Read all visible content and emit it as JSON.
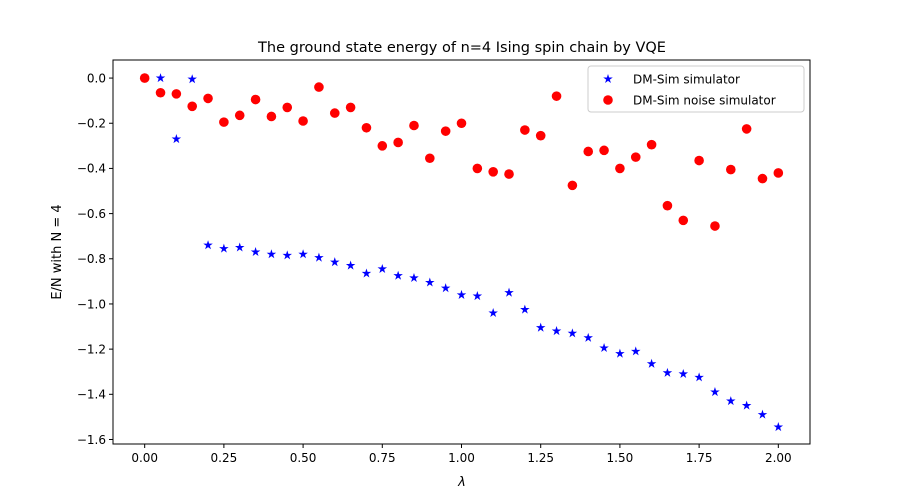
{
  "chart_data": {
    "type": "scatter",
    "title": "The ground state energy of n=4 Ising spin chain by VQE",
    "xlabel": "λ",
    "ylabel": "E/N with N = 4",
    "xlim": [
      -0.1,
      2.1
    ],
    "ylim": [
      -1.62,
      0.08
    ],
    "xticks": [
      0.0,
      0.25,
      0.5,
      0.75,
      1.0,
      1.25,
      1.5,
      1.75,
      2.0
    ],
    "xtick_labels": [
      "0.00",
      "0.25",
      "0.50",
      "0.75",
      "1.00",
      "1.25",
      "1.50",
      "1.75",
      "2.00"
    ],
    "yticks": [
      0.0,
      -0.2,
      -0.4,
      -0.6,
      -0.8,
      -1.0,
      -1.2,
      -1.4,
      -1.6
    ],
    "ytick_labels": [
      "0.0",
      "−0.2",
      "−0.4",
      "−0.6",
      "−0.8",
      "−1.0",
      "−1.2",
      "−1.4",
      "−1.6"
    ],
    "grid": false,
    "legend_position": "top-right",
    "x": [
      0.0,
      0.05,
      0.1,
      0.15,
      0.2,
      0.25,
      0.3,
      0.35,
      0.4,
      0.45,
      0.5,
      0.55,
      0.6,
      0.65,
      0.7,
      0.75,
      0.8,
      0.85,
      0.9,
      0.95,
      1.0,
      1.05,
      1.1,
      1.15,
      1.2,
      1.25,
      1.3,
      1.35,
      1.4,
      1.45,
      1.5,
      1.55,
      1.6,
      1.65,
      1.7,
      1.75,
      1.8,
      1.85,
      1.9,
      1.95,
      2.0
    ],
    "series": [
      {
        "name": "DM-Sim simulator",
        "marker": "star",
        "color": "#0000ff",
        "values": [
          0.0,
          0.0,
          -0.27,
          -0.005,
          -0.74,
          -0.755,
          -0.75,
          -0.77,
          -0.78,
          -0.785,
          -0.78,
          -0.795,
          -0.815,
          -0.83,
          -0.865,
          -0.845,
          -0.875,
          -0.885,
          -0.905,
          -0.93,
          -0.96,
          -0.965,
          -1.04,
          -0.95,
          -1.025,
          -1.105,
          -1.12,
          -1.13,
          -1.15,
          -1.195,
          -1.22,
          -1.21,
          -1.265,
          -1.305,
          -1.31,
          -1.325,
          -1.39,
          -1.43,
          -1.45,
          -1.49,
          -1.545
        ]
      },
      {
        "name": "DM-Sim noise simulator",
        "marker": "circle",
        "color": "#ff0000",
        "values": [
          0.0,
          -0.065,
          -0.07,
          -0.125,
          -0.09,
          -0.195,
          -0.165,
          -0.095,
          -0.17,
          -0.13,
          -0.19,
          -0.04,
          -0.155,
          -0.13,
          -0.22,
          -0.3,
          -0.285,
          -0.21,
          -0.355,
          -0.235,
          -0.2,
          -0.4,
          -0.415,
          -0.425,
          -0.23,
          -0.255,
          -0.08,
          -0.475,
          -0.325,
          -0.32,
          -0.4,
          -0.35,
          -0.295,
          -0.565,
          -0.63,
          -0.365,
          -0.655,
          -0.405,
          -0.225,
          -0.445,
          -0.42
        ]
      }
    ]
  }
}
